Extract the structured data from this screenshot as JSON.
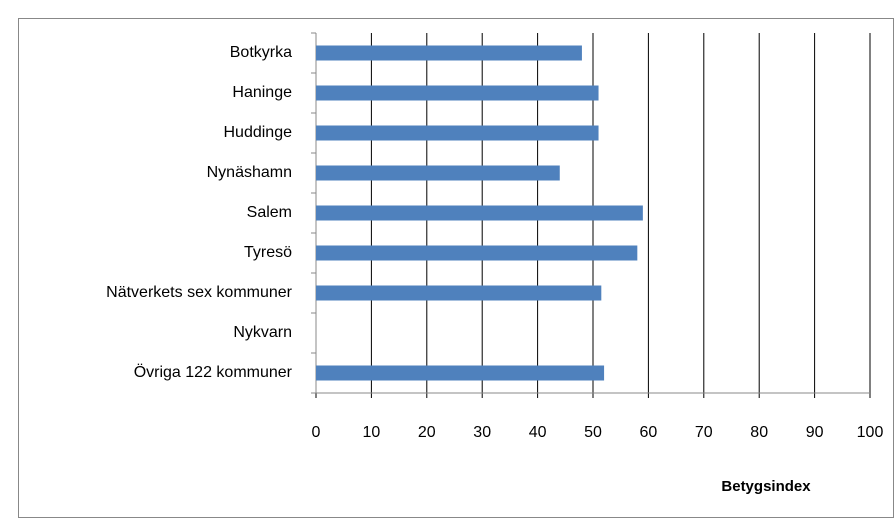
{
  "chart_data": {
    "type": "bar",
    "orientation": "horizontal",
    "categories": [
      "Botkyrka",
      "Haninge",
      "Huddinge",
      "Nynäshamn",
      "Salem",
      "Tyresö",
      "Nätverkets sex kommuner",
      "Nykvarn",
      "Övriga 122 kommuner"
    ],
    "values": [
      48,
      51,
      51,
      44,
      59,
      58,
      51.5,
      null,
      52
    ],
    "color": "#4f81bd",
    "xlabel": "Betygsindex",
    "xlim": [
      0,
      100
    ],
    "xticks": [
      0,
      10,
      20,
      30,
      40,
      50,
      60,
      70,
      80,
      90,
      100
    ],
    "grid": true
  }
}
